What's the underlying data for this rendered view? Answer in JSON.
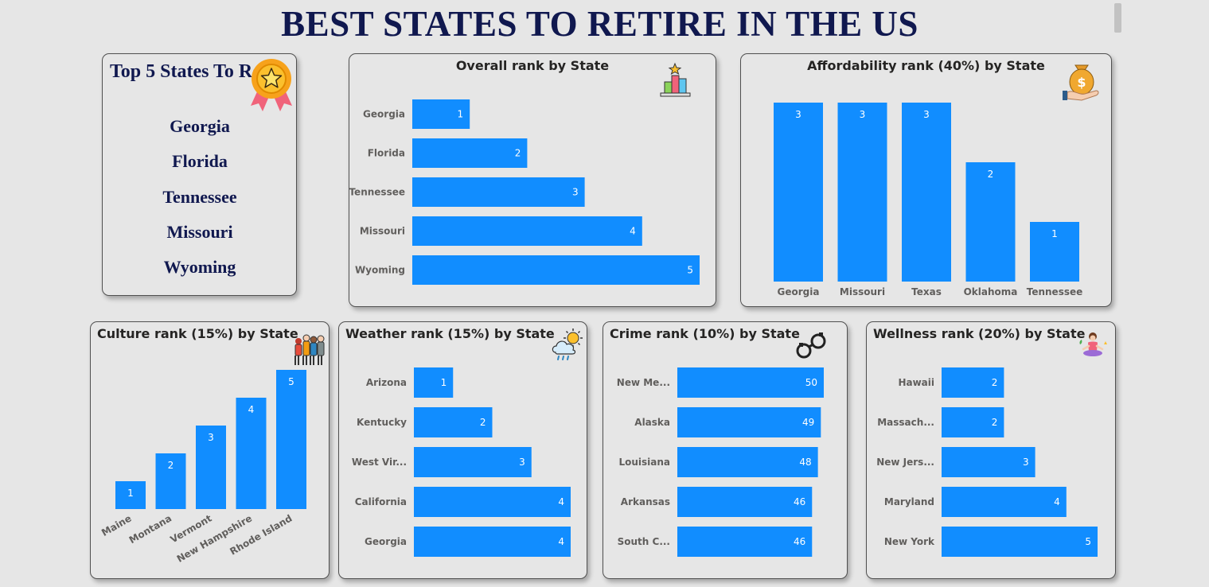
{
  "page": {
    "title": "BEST STATES TO RETIRE IN THE US"
  },
  "top5": {
    "title": "Top 5 States To Retire",
    "states": [
      "Georgia",
      "Florida",
      "Tennessee",
      "Missouri",
      "Wyoming"
    ],
    "icon": "award-medal-icon"
  },
  "colors": {
    "bar": "#118dff",
    "title_text": "#10184f",
    "label_text": "#605e5c",
    "background": "#e6e6e6"
  },
  "chart_data": [
    {
      "id": "overall",
      "type": "bar",
      "orientation": "horizontal",
      "title": "Overall rank by State",
      "icon": "podium-icon",
      "categories": [
        "Georgia",
        "Florida",
        "Tennessee",
        "Missouri",
        "Wyoming"
      ],
      "values": [
        1,
        2,
        3,
        4,
        5
      ],
      "xlim": [
        0,
        5
      ],
      "grid": false,
      "legend": "none"
    },
    {
      "id": "affordability",
      "type": "bar",
      "orientation": "vertical",
      "title": "Affordability rank (40%) by State",
      "icon": "money-bag-hand-icon",
      "categories": [
        "Georgia",
        "Missouri",
        "Texas",
        "Oklahoma",
        "Tennessee"
      ],
      "values": [
        3,
        3,
        3,
        2,
        1
      ],
      "ylim": [
        0,
        3
      ],
      "grid": false,
      "legend": "none"
    },
    {
      "id": "culture",
      "type": "bar",
      "orientation": "vertical",
      "title": "Culture rank (15%) by State",
      "icon": "people-culture-icon",
      "categories": [
        "Maine",
        "Montana",
        "Vermont",
        "New Hampshire",
        "Rhode Island"
      ],
      "values": [
        1,
        2,
        3,
        4,
        5
      ],
      "ylim": [
        0,
        5
      ],
      "grid": false,
      "legend": "none"
    },
    {
      "id": "weather",
      "type": "bar",
      "orientation": "horizontal",
      "title": "Weather rank (15%) by State",
      "icon": "weather-sun-cloud-icon",
      "categories": [
        "Arizona",
        "Kentucky",
        "West Vir...",
        "California",
        "Georgia"
      ],
      "values": [
        1,
        2,
        3,
        4,
        4
      ],
      "xlim": [
        0,
        4
      ],
      "grid": false,
      "legend": "none"
    },
    {
      "id": "crime",
      "type": "bar",
      "orientation": "horizontal",
      "title": "Crime rank (10%) by State",
      "icon": "handcuffs-icon",
      "categories": [
        "New Me...",
        "Alaska",
        "Louisiana",
        "Arkansas",
        "South C..."
      ],
      "values": [
        50,
        49,
        48,
        46,
        46
      ],
      "xlim": [
        0,
        50
      ],
      "grid": false,
      "legend": "none"
    },
    {
      "id": "wellness",
      "type": "bar",
      "orientation": "horizontal",
      "title": "Wellness rank (20%) by State",
      "icon": "meditation-icon",
      "categories": [
        "Hawaii",
        "Massach...",
        "New Jers...",
        "Maryland",
        "New York"
      ],
      "values": [
        2,
        2,
        3,
        4,
        5
      ],
      "xlim": [
        0,
        5
      ],
      "grid": false,
      "legend": "none"
    }
  ]
}
